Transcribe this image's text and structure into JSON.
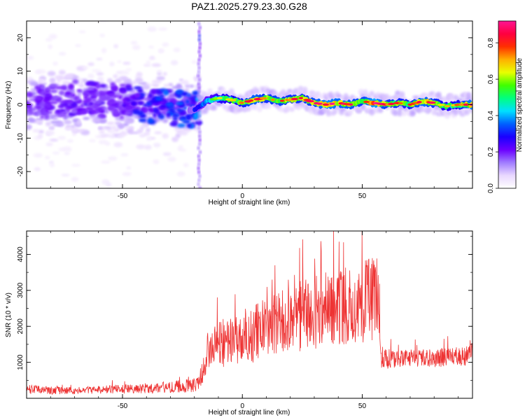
{
  "figure_title": "PAZ1.2025.279.23.30.G28",
  "colorbar": {
    "label": "Normalized spectral amplitude",
    "ticks": [
      "0.0",
      "0.2",
      "0.4",
      "0.6",
      "0.8"
    ],
    "tick_values": [
      0.0,
      0.2,
      0.4,
      0.6,
      0.8
    ],
    "range": [
      0,
      0.92
    ],
    "colormap": [
      "#ffffff",
      "#e9d8ff",
      "#a07cff",
      "#6a00ff",
      "#1a00ff",
      "#0060ff",
      "#00e0ff",
      "#00ff80",
      "#40ff00",
      "#e8ff00",
      "#ffb000",
      "#ff3000",
      "#ff0040",
      "#ff1493"
    ]
  },
  "chart_data": [
    {
      "type": "heatmap",
      "title": "PAZ1.2025.279.23.30.G28",
      "xlabel": "Height of straight line (km)",
      "ylabel": "Frequency (Hz)",
      "xlim": [
        -90,
        96
      ],
      "ylim": [
        -25,
        25
      ],
      "xticks": [
        -50,
        0,
        50
      ],
      "yticks": [
        -20,
        -10,
        0,
        10,
        20
      ],
      "xtick_labels": [
        "-50",
        "0",
        "50"
      ],
      "ytick_labels": [
        "-20",
        "-10",
        "0",
        "10",
        "20"
      ],
      "ridge": {
        "x": [
          -90,
          -80,
          -70,
          -60,
          -50,
          -40,
          -30,
          -20,
          -15,
          -10,
          -5,
          0,
          5,
          10,
          15,
          20,
          25,
          30,
          35,
          40,
          45,
          50,
          55,
          60,
          65,
          70,
          75,
          80,
          85,
          90,
          96
        ],
        "frequency": [
          0.5,
          1.0,
          2.0,
          1.5,
          1.0,
          0.0,
          -1.0,
          -1.5,
          1.0,
          2.0,
          1.5,
          0.5,
          1.5,
          2.0,
          1.0,
          1.5,
          2.0,
          0.5,
          0.0,
          0.5,
          0.0,
          1.0,
          0.5,
          0.0,
          0.5,
          0.0,
          1.0,
          0.5,
          -0.5,
          0.0,
          0.0
        ],
        "amplitude": [
          0.2,
          0.2,
          0.22,
          0.22,
          0.22,
          0.3,
          0.35,
          0.35,
          0.45,
          0.6,
          0.62,
          0.68,
          0.8,
          0.7,
          0.75,
          0.7,
          0.72,
          0.75,
          0.85,
          0.8,
          0.78,
          0.72,
          0.88,
          0.72,
          0.7,
          0.68,
          0.82,
          0.72,
          0.6,
          0.65,
          0.85
        ]
      },
      "noise_region_x": [
        -90,
        -18
      ],
      "spike_x": -18
    },
    {
      "type": "line",
      "xlabel": "Height of straight line (km)",
      "ylabel": "SNR (10 * v/v)",
      "xlim": [
        -90,
        96
      ],
      "ylim": [
        0,
        4650
      ],
      "xticks": [
        -50,
        0,
        50
      ],
      "yticks": [
        1000,
        2000,
        3000,
        4000
      ],
      "xtick_labels": [
        "-50",
        "0",
        "50"
      ],
      "ytick_labels": [
        "1000",
        "2000",
        "3000",
        "4000"
      ],
      "series": [
        {
          "name": "SNR",
          "color": "#ee3333",
          "x": [
            -90,
            -80,
            -70,
            -60,
            -50,
            -40,
            -30,
            -25,
            -20,
            -18,
            -15,
            -12,
            -10,
            -5,
            0,
            5,
            10,
            15,
            20,
            25,
            30,
            35,
            40,
            45,
            50,
            55,
            57,
            58,
            60,
            65,
            70,
            75,
            80,
            85,
            90,
            96
          ],
          "mean": [
            250,
            220,
            210,
            230,
            260,
            280,
            310,
            340,
            380,
            420,
            1200,
            1450,
            1500,
            1600,
            1700,
            1800,
            1950,
            2050,
            2150,
            2300,
            2400,
            2500,
            2600,
            2600,
            2700,
            2750,
            2800,
            1150,
            1100,
            1080,
            1100,
            1100,
            1120,
            1150,
            1150,
            1200
          ],
          "spread": [
            130,
            110,
            100,
            110,
            130,
            140,
            160,
            180,
            220,
            240,
            500,
            600,
            650,
            700,
            750,
            800,
            850,
            900,
            950,
            1000,
            1050,
            1100,
            1100,
            1100,
            1150,
            1200,
            1200,
            300,
            280,
            250,
            260,
            260,
            260,
            270,
            270,
            280
          ]
        }
      ]
    }
  ]
}
